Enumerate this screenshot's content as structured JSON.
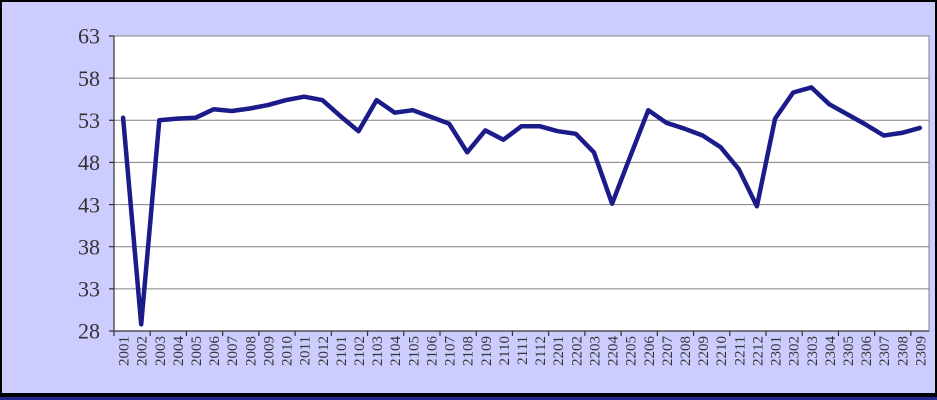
{
  "window": {
    "frame_border_color": "#000000",
    "bottom_edge_color": "#26268f"
  },
  "chart_data": {
    "type": "line",
    "title": "",
    "xlabel": "",
    "ylabel": "",
    "categories": [
      "2001",
      "2002",
      "2003",
      "2004",
      "2005",
      "2006",
      "2007",
      "2008",
      "2009",
      "2010",
      "2011",
      "2012",
      "2101",
      "2102",
      "2103",
      "2104",
      "2105",
      "2106",
      "2107",
      "2108",
      "2109",
      "2110",
      "2111",
      "2112",
      "2201",
      "2202",
      "2203",
      "2204",
      "2205",
      "2206",
      "2207",
      "2208",
      "2209",
      "2210",
      "2211",
      "2212",
      "2301",
      "2302",
      "2303",
      "2304",
      "2305",
      "2306",
      "2307",
      "2308",
      "2309"
    ],
    "series": [
      {
        "values": [
          53.3,
          28.8,
          53.0,
          53.2,
          53.3,
          54.3,
          54.1,
          54.4,
          54.8,
          55.4,
          55.8,
          55.4,
          53.5,
          51.7,
          55.4,
          53.9,
          54.2,
          53.4,
          52.6,
          49.2,
          51.8,
          50.7,
          52.3,
          52.3,
          51.7,
          51.4,
          49.2,
          43.1,
          48.7,
          54.2,
          52.7,
          52.0,
          51.2,
          49.8,
          47.2,
          42.8,
          53.2,
          56.3,
          56.9,
          54.9,
          53.7,
          52.5,
          51.2,
          51.5,
          52.1
        ]
      }
    ],
    "ylim": [
      28,
      63
    ],
    "ytick_step": 5,
    "ytick_labels": [
      "28",
      "33",
      "38",
      "43",
      "48",
      "53",
      "58",
      "63"
    ],
    "grid": true,
    "legend": false,
    "x_tick_interval": 2,
    "line_color": "#1b1b8a",
    "background_color": "#ccccff",
    "plot_background_color": "#ffffff",
    "gridline_color": "#808080",
    "axis_color": "#333333",
    "label_color": "#333333"
  }
}
